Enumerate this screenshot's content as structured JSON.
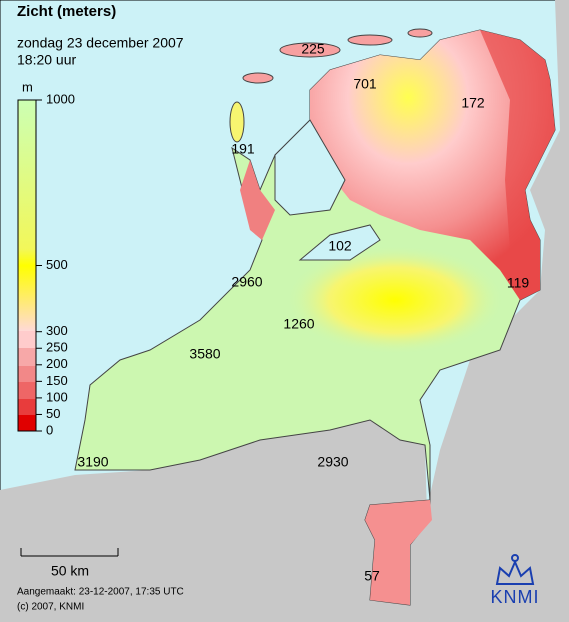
{
  "header": {
    "title": "Zicht (meters)",
    "date": "zondag 23 december 2007",
    "time": "18:20 uur"
  },
  "legend": {
    "unit": "m",
    "lim": [
      0,
      1000
    ],
    "ticks": [
      1000,
      500,
      300,
      250,
      200,
      150,
      100,
      50,
      0
    ]
  },
  "labels": [
    225,
    701,
    172,
    191,
    102,
    2960,
    119,
    1260,
    3580,
    3190,
    2930,
    57
  ],
  "scale": "50 km",
  "footer": {
    "created": "Aangemaakt: 23-12-2007, 17:35 UTC",
    "copyright": "(c) 2007, KNMI"
  },
  "logo": "KNMI"
}
